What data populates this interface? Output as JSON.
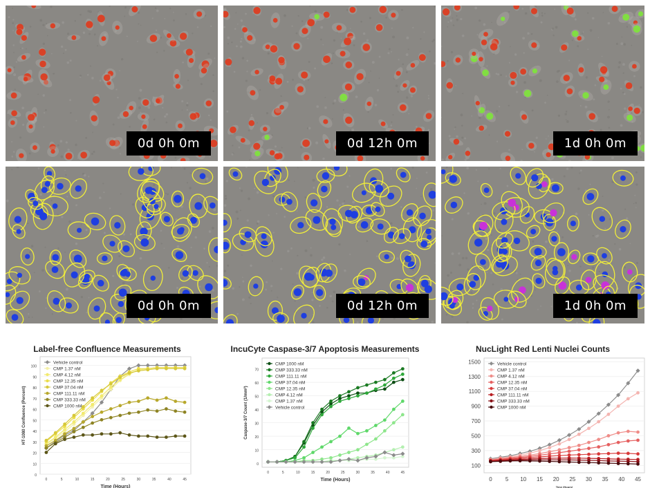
{
  "timestamps": [
    "0d 0h 0m",
    "0d 12h 0m",
    "1d 0h 0m"
  ],
  "colors": {
    "background_gray": "#8a8884",
    "nucleus_red": "#e0381c",
    "apoptotic_green": "#7ee53a",
    "mask_yellow": "#f1ee3a",
    "mask_blue": "#1f3fe0",
    "mask_magenta": "#c832d8"
  },
  "chart_data": [
    {
      "type": "line",
      "title": "Label-free Confluence Measurements",
      "xlabel": "Time (Hours)",
      "ylabel": "HT-1080 Confluence (Percent)",
      "x": [
        0,
        3,
        6,
        9,
        12,
        15,
        18,
        21,
        24,
        27,
        30,
        33,
        36,
        39,
        42,
        45
      ],
      "xticks": [
        0,
        5,
        10,
        15,
        20,
        25,
        30,
        35,
        40,
        45
      ],
      "yticks": [
        0,
        10,
        20,
        30,
        40,
        50,
        60,
        70,
        80,
        90,
        100
      ],
      "xlim": [
        -2,
        47
      ],
      "ylim": [
        0,
        108
      ],
      "legend_position": "top-left",
      "series": [
        {
          "name": "Vehicle control",
          "color": "#8c8c8c",
          "marker": "diamond",
          "values": [
            24,
            30,
            36,
            40,
            48,
            56,
            66,
            78,
            90,
            97,
            100,
            100,
            100,
            100,
            100,
            100
          ]
        },
        {
          "name": "CMP 1.37 nM",
          "color": "#f4f0a8",
          "marker": "circle",
          "values": [
            27,
            33,
            39,
            46,
            54,
            62,
            70,
            78,
            86,
            92,
            96,
            97,
            98,
            98,
            98,
            98
          ]
        },
        {
          "name": "CMP 4.12 nM",
          "color": "#f2ea6e",
          "marker": "circle",
          "values": [
            28,
            34,
            41,
            48,
            56,
            64,
            72,
            80,
            87,
            92,
            96,
            97,
            98,
            98,
            98,
            98
          ]
        },
        {
          "name": "CMP 12.35 nM",
          "color": "#ebdd4a",
          "marker": "circle",
          "values": [
            30,
            37,
            44,
            52,
            60,
            68,
            76,
            84,
            90,
            94,
            97,
            97,
            98,
            98,
            98,
            98
          ]
        },
        {
          "name": "CMP 37.04 nM",
          "color": "#d6c83a",
          "marker": "circle",
          "values": [
            31,
            38,
            46,
            54,
            62,
            70,
            77,
            83,
            89,
            93,
            95,
            96,
            97,
            97,
            97,
            97
          ]
        },
        {
          "name": "CMP 111.11 nM",
          "color": "#b8a82c",
          "marker": "circle",
          "values": [
            26,
            31,
            37,
            42,
            48,
            53,
            57,
            60,
            63,
            66,
            67,
            70,
            68,
            70,
            67,
            66
          ]
        },
        {
          "name": "CMP 333.33 nM",
          "color": "#8e8424",
          "marker": "circle",
          "values": [
            24,
            29,
            34,
            39,
            43,
            47,
            50,
            52,
            54,
            56,
            57,
            59,
            58,
            60,
            58,
            57
          ]
        },
        {
          "name": "CMP 1000 nM",
          "color": "#5c5618",
          "marker": "circle",
          "values": [
            20,
            28,
            32,
            34,
            36,
            36,
            37,
            37,
            38,
            36,
            35,
            35,
            34,
            34,
            35,
            35
          ]
        }
      ]
    },
    {
      "type": "line",
      "title": "IncuCyte Caspase-3/7 Apoptosis Measurements",
      "xlabel": "Time (Hours)",
      "ylabel": "Caspase-3/7 Count (1/mm²)",
      "x": [
        0,
        3,
        6,
        9,
        12,
        15,
        18,
        21,
        24,
        27,
        30,
        33,
        36,
        39,
        42,
        45
      ],
      "xticks": [
        0,
        5,
        10,
        15,
        20,
        25,
        30,
        35,
        40,
        45
      ],
      "yticks": [
        0,
        10,
        20,
        30,
        40,
        50,
        60,
        70
      ],
      "xlim": [
        -2,
        47
      ],
      "ylim": [
        -3,
        78
      ],
      "legend_position": "top-left",
      "series": [
        {
          "name": "CMP 1000 nM",
          "color": "#0b4d12",
          "marker": "circle",
          "values": [
            1,
            1,
            2,
            5,
            15,
            28,
            38,
            44,
            48,
            50,
            52,
            52,
            54,
            55,
            60,
            62
          ]
        },
        {
          "name": "CMP 333.33 nM",
          "color": "#1a7a22",
          "marker": "circle",
          "values": [
            1,
            1,
            2,
            5,
            16,
            30,
            40,
            46,
            50,
            53,
            56,
            58,
            60,
            62,
            67,
            70
          ]
        },
        {
          "name": "CMP 111.11 nM",
          "color": "#2ea83a",
          "marker": "circle",
          "values": [
            1,
            1,
            2,
            4,
            12,
            26,
            36,
            42,
            46,
            48,
            50,
            52,
            55,
            58,
            63,
            66
          ]
        },
        {
          "name": "CMP 37.04 nM",
          "color": "#5fd86a",
          "marker": "circle",
          "values": [
            1,
            1,
            1,
            2,
            4,
            8,
            12,
            16,
            20,
            26,
            22,
            24,
            28,
            32,
            40,
            46
          ]
        },
        {
          "name": "CMP 12.35 nM",
          "color": "#8ee68c",
          "marker": "circle",
          "values": [
            1,
            1,
            1,
            1,
            2,
            2,
            3,
            4,
            6,
            8,
            10,
            14,
            18,
            24,
            30,
            36
          ]
        },
        {
          "name": "CMP 4.12 nM",
          "color": "#b4efb0",
          "marker": "circle",
          "values": [
            1,
            1,
            1,
            1,
            1,
            1,
            1,
            2,
            2,
            3,
            4,
            5,
            6,
            8,
            10,
            12
          ]
        },
        {
          "name": "CMP 1.37 nM",
          "color": "#d4f5d0",
          "marker": "circle",
          "values": [
            1,
            1,
            1,
            1,
            1,
            1,
            1,
            1,
            2,
            2,
            2,
            3,
            3,
            4,
            4,
            5
          ]
        },
        {
          "name": "Vehicle control",
          "color": "#8c8c8c",
          "marker": "diamond",
          "values": [
            1,
            1,
            1,
            1,
            1,
            1,
            1,
            1,
            2,
            3,
            2,
            4,
            5,
            8,
            6,
            7
          ]
        }
      ]
    },
    {
      "type": "line",
      "title": "NucLight Red Lenti Nuclei Counts",
      "xlabel": "Time (Hours)",
      "ylabel": "",
      "x": [
        0,
        3,
        6,
        9,
        12,
        15,
        18,
        21,
        24,
        27,
        30,
        33,
        36,
        39,
        42,
        45
      ],
      "xticks": [
        0,
        5,
        10,
        15,
        20,
        25,
        30,
        35,
        40,
        45
      ],
      "yticks": [
        100,
        300,
        500,
        700,
        900,
        1100,
        1300,
        1500
      ],
      "xlim": [
        -2,
        47
      ],
      "ylim": [
        0,
        1550
      ],
      "legend_position": "top-left",
      "series": [
        {
          "name": "Vehicle control",
          "color": "#8c8c8c",
          "marker": "diamond",
          "values": [
            190,
            210,
            230,
            260,
            290,
            330,
            380,
            440,
            510,
            590,
            690,
            800,
            920,
            1050,
            1210,
            1380
          ]
        },
        {
          "name": "CMP 1.37 nM",
          "color": "#f4b4b0",
          "marker": "circle",
          "values": [
            180,
            200,
            215,
            240,
            265,
            300,
            340,
            390,
            450,
            520,
            600,
            690,
            790,
            900,
            1000,
            1080
          ]
        },
        {
          "name": "CMP 4.12 nM",
          "color": "#ef8c88",
          "marker": "circle",
          "values": [
            175,
            190,
            205,
            220,
            240,
            260,
            285,
            310,
            340,
            370,
            410,
            450,
            500,
            540,
            560,
            550
          ]
        },
        {
          "name": "CMP 12.35 nM",
          "color": "#e56060",
          "marker": "circle",
          "values": [
            170,
            182,
            195,
            208,
            222,
            238,
            255,
            272,
            290,
            310,
            330,
            350,
            380,
            410,
            430,
            440
          ]
        },
        {
          "name": "CMP 37.04 nM",
          "color": "#d83a3a",
          "marker": "circle",
          "values": [
            165,
            175,
            185,
            195,
            205,
            215,
            225,
            232,
            240,
            245,
            250,
            255,
            260,
            265,
            262,
            255
          ]
        },
        {
          "name": "CMP 111.11 nM",
          "color": "#b81e22",
          "marker": "circle",
          "values": [
            160,
            168,
            175,
            182,
            188,
            192,
            196,
            198,
            200,
            198,
            195,
            192,
            188,
            185,
            182,
            180
          ]
        },
        {
          "name": "CMP 333.33 nM",
          "color": "#8a1016",
          "marker": "circle",
          "values": [
            155,
            162,
            168,
            172,
            175,
            176,
            176,
            175,
            174,
            172,
            168,
            165,
            160,
            158,
            155,
            150
          ]
        },
        {
          "name": "CMP 1000 nM",
          "color": "#4a0a0c",
          "marker": "circle",
          "values": [
            150,
            155,
            160,
            162,
            160,
            158,
            154,
            150,
            146,
            142,
            138,
            134,
            130,
            126,
            122,
            118
          ]
        }
      ]
    }
  ]
}
